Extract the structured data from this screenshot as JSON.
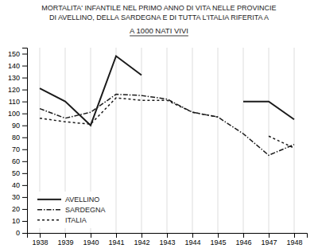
{
  "chart_data": {
    "type": "line",
    "title": "MORTALITA' INFANTILE NEL PRIMO ANNO DI VITA NELLE PROVINCIE\nDI AVELLINO, DELLA SARDEGNA E DI TUTTA L'ITALIA RIFERITA A",
    "subtitle": "A 1000 NATI VIVI",
    "x": [
      1938,
      1939,
      1940,
      1941,
      1942,
      1943,
      1944,
      1945,
      1946,
      1947,
      1948
    ],
    "series": [
      {
        "name": "AVELLINO",
        "color": "#1a1a1a",
        "line_style": "solid",
        "values": [
          121,
          110,
          90,
          148,
          132,
          null,
          null,
          null,
          110,
          110,
          95
        ]
      },
      {
        "name": "SARDEGNA",
        "color": "#1a1a1a",
        "line_style": "dashdot",
        "values": [
          104,
          96,
          101,
          116,
          115,
          112,
          101,
          97,
          83,
          65,
          74
        ]
      },
      {
        "name": "ITALIA",
        "color": "#1a1a1a",
        "line_style": "dashed",
        "values": [
          96,
          93,
          91,
          113,
          111,
          111,
          101,
          97,
          null,
          81,
          71
        ]
      }
    ],
    "xlim": [
      1937.5,
      1948.5
    ],
    "xticks": [
      1938,
      1939,
      1940,
      1941,
      1942,
      1943,
      1944,
      1945,
      1946,
      1947,
      1948
    ],
    "ylim": [
      0,
      155
    ],
    "yticks": [
      0,
      10,
      20,
      30,
      40,
      50,
      60,
      70,
      80,
      90,
      100,
      110,
      120,
      130,
      140,
      150
    ],
    "grid": "x",
    "legend": "lower left"
  }
}
